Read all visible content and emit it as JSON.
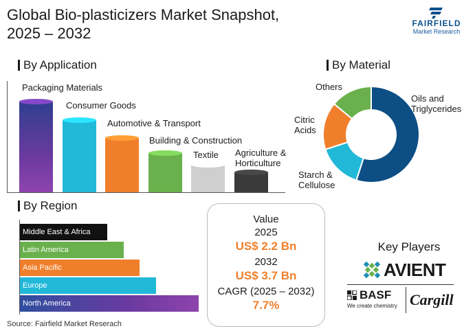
{
  "header": {
    "title_line1": "Global Bio-plasticizers Market Snapshot,",
    "title_line2": "2025 – 2032"
  },
  "logo": {
    "brand": "FAIRFIELD",
    "sub": "Market Research"
  },
  "sections": {
    "application": "By Application",
    "material": "By Material",
    "region": "By Region"
  },
  "value_box": {
    "title": "Value",
    "year1": "2025",
    "value1": "US$ 2.2 Bn",
    "year2": "2032",
    "value2": "US$ 3.7 Bn",
    "cagr_label": "CAGR (2025 – 2032)",
    "cagr_value": "7.7%"
  },
  "key_players": {
    "title": "Key Players",
    "avient": "AVIENT",
    "basf": "BASF",
    "basf_tagline": "We create chemistry",
    "cargill": "Cargill"
  },
  "source": "Source: Fairfield Market Reserach",
  "chart_data": [
    {
      "type": "bar",
      "title": "By Application",
      "categories": [
        "Packaging Materials",
        "Consumer Goods",
        "Automotive & Transport",
        "Building & Construction",
        "Textile",
        "Agriculture & Horticulture"
      ],
      "values": [
        100,
        80,
        61,
        45,
        32,
        24
      ],
      "colors": [
        "#6a3aa0",
        "#22b8d8",
        "#f07f2b",
        "#6ab04c",
        "#cfcfcf",
        "#3a3a3a"
      ]
    },
    {
      "type": "pie",
      "title": "By Material",
      "categories": [
        "Oils and Triglycerides",
        "Starch & Cellulose",
        "Citric Acids",
        "Others"
      ],
      "values": [
        55,
        15,
        16,
        14
      ],
      "colors": [
        "#0d4e84",
        "#22b8d8",
        "#f07f2b",
        "#6ab04c"
      ]
    },
    {
      "type": "bar",
      "title": "By Region",
      "categories": [
        "Middle East & Africa",
        "Latin America",
        "Asia Pacific",
        "Europe",
        "North America"
      ],
      "values": [
        49,
        58,
        67,
        76,
        100
      ],
      "colors": [
        "#111111",
        "#6ab04c",
        "#f07f2b",
        "#22b8d8",
        "#6a3aa0"
      ],
      "label_colors": [
        "#ffffff",
        "#ffffff",
        "#ffffff",
        "#ffffff",
        "#ffffff"
      ]
    }
  ]
}
